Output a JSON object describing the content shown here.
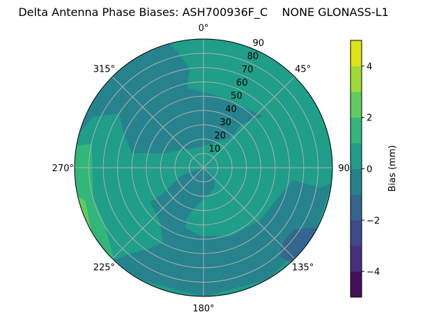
{
  "chart_data": {
    "type": "heatmap",
    "subtype": "polar-filled-contour",
    "title": "Delta Antenna Phase Biases: ASH700936F_C    NONE GLONASS-L1",
    "angular_axis": {
      "direction": "clockwise",
      "zero_location": "top",
      "tick_labels": [
        "0°",
        "45°",
        "90",
        "135°",
        "180°",
        "225°",
        "270°",
        "315°"
      ],
      "tick_values": [
        0,
        45,
        90,
        135,
        180,
        225,
        270,
        315
      ]
    },
    "radial_axis": {
      "range": [
        0,
        90
      ],
      "tick_values": [
        10,
        20,
        30,
        40,
        50,
        60,
        70,
        80,
        90
      ],
      "tick_labels": [
        "10",
        "20",
        "30",
        "40",
        "50",
        "60",
        "70",
        "80",
        "90"
      ],
      "label_azimuth": 22.5
    },
    "grid": true,
    "colorbar": {
      "label": "Bias (mm)",
      "range": [
        -5,
        5
      ],
      "levels": [
        -5,
        -4,
        -3,
        -2,
        -1,
        0,
        1,
        2,
        3,
        4,
        5
      ],
      "tick_values": [
        -4,
        -2,
        0,
        2,
        4
      ],
      "tick_labels": [
        "−4",
        "−2",
        "0",
        "2",
        "4"
      ],
      "colors": [
        "#450e5a",
        "#472f7d",
        "#3e4a89",
        "#33678d",
        "#26838e",
        "#1f9e89",
        "#32b67a",
        "#62cb5f",
        "#a0da39",
        "#dde318"
      ],
      "placement": "right"
    },
    "background_level": [
      0,
      1
    ],
    "regions": [
      {
        "level": [
          -1,
          0
        ],
        "points": [
          [
            345,
            90
          ],
          [
            352,
            70
          ],
          [
            348,
            57
          ],
          [
            10,
            51
          ],
          [
            49,
            55
          ],
          [
            41,
            41
          ],
          [
            41,
            28
          ],
          [
            356,
            15
          ],
          [
            290,
            30
          ],
          [
            282,
            51
          ],
          [
            294,
            61
          ],
          [
            303,
            70
          ],
          [
            295,
            85
          ],
          [
            286,
            90
          ],
          [
            300,
            90
          ],
          [
            315,
            90
          ],
          [
            330,
            90
          ]
        ]
      },
      {
        "level": [
          -1,
          0
        ],
        "points": [
          [
            0,
            0
          ],
          [
            129,
            9
          ],
          [
            151,
            16
          ],
          [
            186,
            24
          ],
          [
            199,
            37
          ],
          [
            197,
            44
          ],
          [
            183,
            48
          ],
          [
            158,
            52
          ],
          [
            133,
            54
          ],
          [
            98,
            63
          ],
          [
            100,
            83
          ],
          [
            97,
            90
          ],
          [
            120,
            90
          ],
          [
            150,
            90
          ],
          [
            180,
            90
          ],
          [
            210,
            90
          ],
          [
            224,
            90
          ],
          [
            221,
            81
          ],
          [
            215,
            70
          ],
          [
            208,
            60
          ],
          [
            219,
            48
          ],
          [
            237,
            44
          ],
          [
            237,
            34
          ],
          [
            249,
            17
          ]
        ]
      },
      {
        "level": [
          1,
          2
        ],
        "points": [
          [
            280,
            88
          ],
          [
            282,
            80
          ],
          [
            255,
            80
          ],
          [
            240,
            80
          ],
          [
            225,
            89
          ],
          [
            225,
            90
          ],
          [
            240,
            90
          ],
          [
            255,
            90
          ],
          [
            270,
            90
          ],
          [
            280,
            90
          ]
        ]
      },
      {
        "level": [
          2,
          3
        ],
        "points": [
          [
            257,
            90
          ],
          [
            254,
            86
          ],
          [
            241,
            90
          ],
          [
            249,
            90
          ]
        ]
      },
      {
        "level": [
          -2,
          -1
        ],
        "points": [
          [
            131,
            76
          ],
          [
            124,
            77
          ],
          [
            118,
            90
          ],
          [
            127,
            90
          ],
          [
            137,
            90
          ],
          [
            139,
            83
          ],
          [
            136,
            78
          ]
        ]
      }
    ]
  }
}
